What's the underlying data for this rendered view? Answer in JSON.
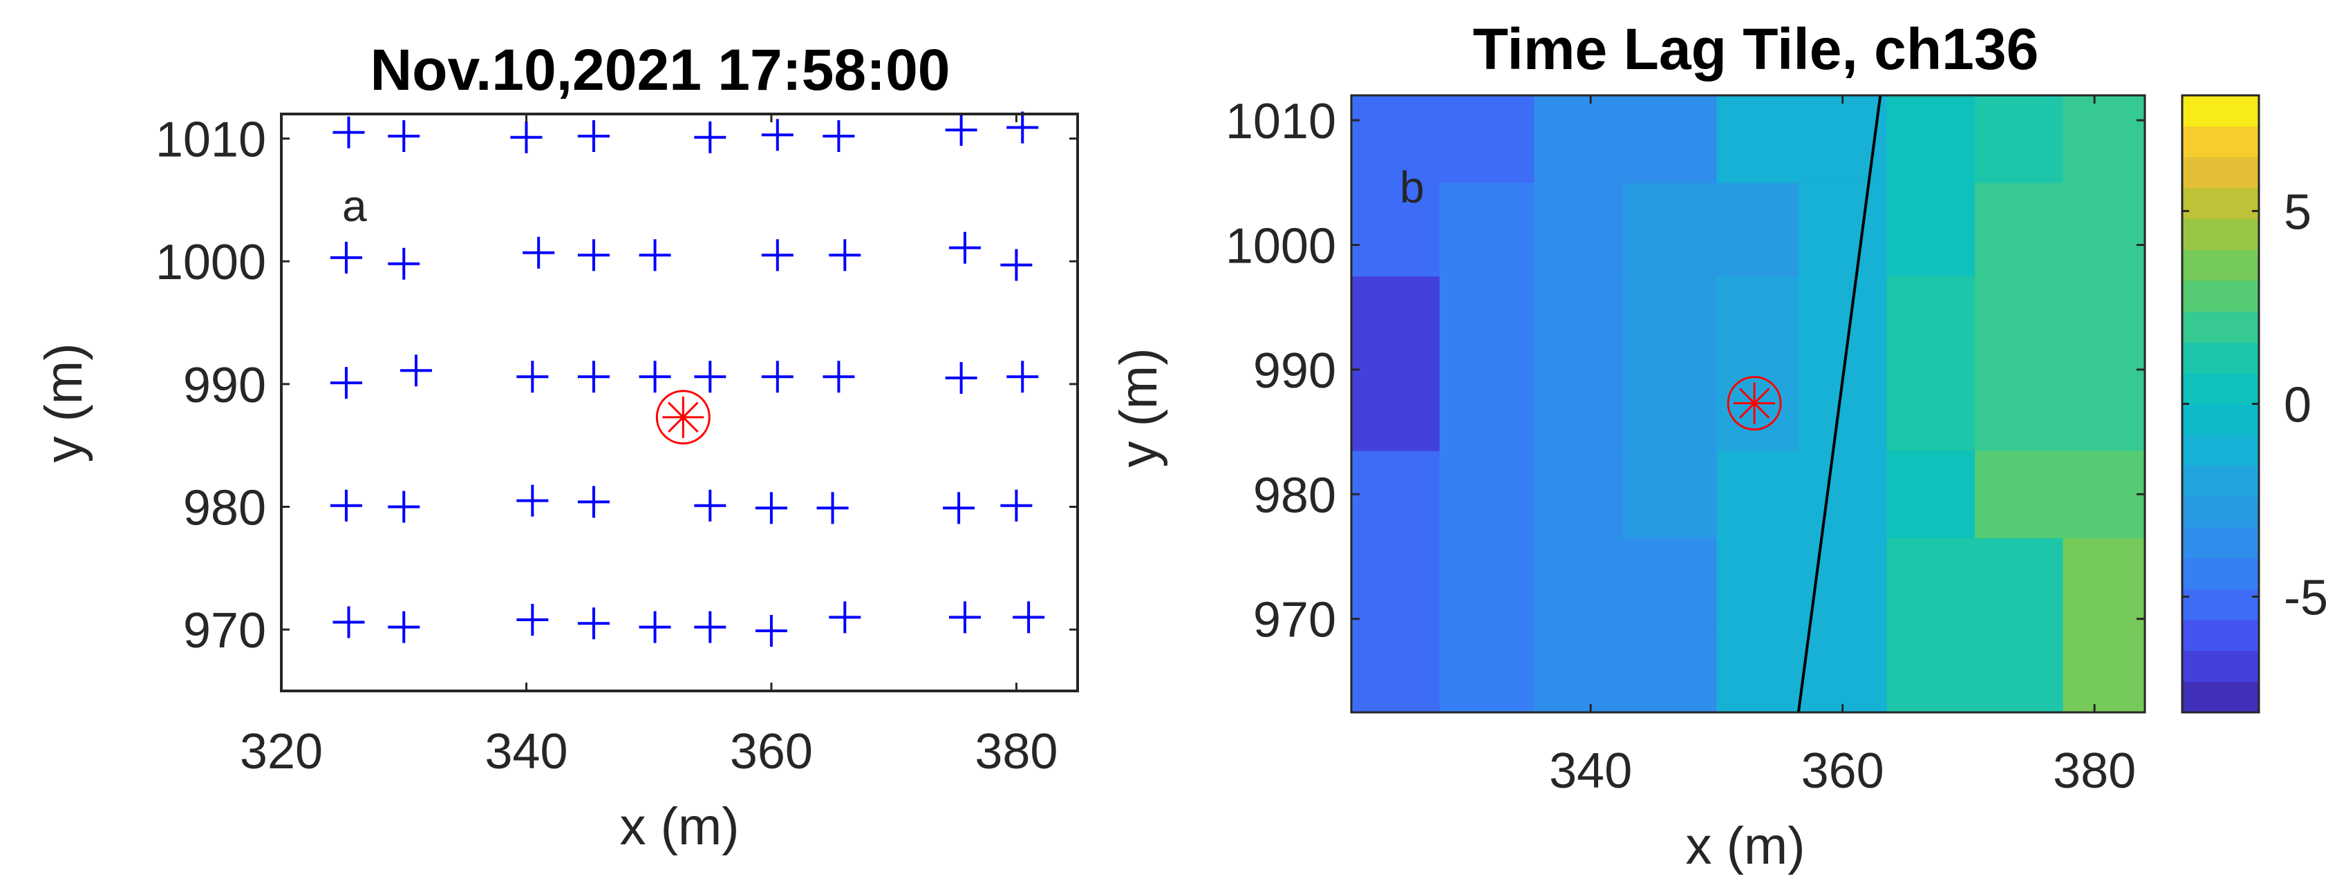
{
  "chart_data": [
    {
      "type": "scatter",
      "title": "Nov.10,2021 17:58:00",
      "xlabel": "x (m)",
      "ylabel": "y (m)",
      "xlim": [
        320,
        385
      ],
      "ylim": [
        965,
        1012
      ],
      "xticks": [
        320,
        340,
        360,
        380
      ],
      "yticks": [
        970,
        980,
        990,
        1000,
        1010
      ],
      "panel_label": "a",
      "grid": false,
      "marker_color": "#0000ff",
      "highlight_color": "#ff0000",
      "series": [
        {
          "marker": "plus",
          "points": [
            [
              325.5,
              1010.5
            ],
            [
              330,
              1010.2
            ],
            [
              340,
              1010.1
            ],
            [
              345.5,
              1010.2
            ],
            [
              355,
              1010.1
            ],
            [
              360.5,
              1010.3
            ],
            [
              365.5,
              1010.2
            ],
            [
              375.5,
              1010.7
            ],
            [
              380.5,
              1010.9
            ],
            [
              325.3,
              1000.3
            ],
            [
              330,
              999.8
            ],
            [
              341,
              1000.7
            ],
            [
              345.5,
              1000.5
            ],
            [
              350.5,
              1000.5
            ],
            [
              360.5,
              1000.5
            ],
            [
              366,
              1000.5
            ],
            [
              375.8,
              1001.1
            ],
            [
              380,
              999.7
            ],
            [
              325.3,
              990.1
            ],
            [
              331,
              991.1
            ],
            [
              340.5,
              990.6
            ],
            [
              345.5,
              990.6
            ],
            [
              350.5,
              990.6
            ],
            [
              355,
              990.6
            ],
            [
              360.5,
              990.6
            ],
            [
              365.5,
              990.6
            ],
            [
              375.5,
              990.5
            ],
            [
              380.5,
              990.6
            ],
            [
              325.3,
              980.1
            ],
            [
              330,
              980
            ],
            [
              340.5,
              980.5
            ],
            [
              345.5,
              980.4
            ],
            [
              355,
              980.1
            ],
            [
              360,
              979.9
            ],
            [
              365,
              979.9
            ],
            [
              375.3,
              979.9
            ],
            [
              380,
              980.1
            ],
            [
              325.5,
              970.6
            ],
            [
              330,
              970.2
            ],
            [
              340.5,
              970.8
            ],
            [
              345.5,
              970.5
            ],
            [
              350.5,
              970.2
            ],
            [
              355,
              970.2
            ],
            [
              360,
              969.9
            ],
            [
              366,
              971
            ],
            [
              375.8,
              971
            ],
            [
              381,
              971
            ]
          ]
        },
        {
          "marker": "circled-asterisk",
          "points": [
            [
              352.8,
              987.3
            ]
          ]
        }
      ]
    },
    {
      "type": "heatmap",
      "title": "Time Lag Tile, ch136",
      "xlabel": "x (m)",
      "ylabel": "y (m)",
      "xlim": [
        321,
        384
      ],
      "ylim": [
        962.5,
        1012
      ],
      "xticks": [
        340,
        360,
        380
      ],
      "yticks": [
        970,
        980,
        990,
        1000,
        1010
      ],
      "panel_label": "b",
      "colorbar": {
        "range": [
          -8,
          8
        ],
        "ticks": [
          -5,
          0,
          5
        ]
      },
      "x_edges": [
        321,
        328,
        335.5,
        342.5,
        350,
        356.5,
        363.5,
        370.5,
        377.5,
        384
      ],
      "y_edges": [
        962.5,
        969.5,
        976.5,
        983.5,
        990.5,
        997.5,
        1005,
        1012
      ],
      "values": [
        [
          -5.6,
          -4.8,
          -4.0,
          -4.0,
          -1.4,
          -1.0,
          1.4,
          1.4,
          3.6
        ],
        [
          -5.6,
          -4.8,
          -4.0,
          -4.0,
          -1.4,
          -1.0,
          1.4,
          1.4,
          3.6
        ],
        [
          -5.6,
          -4.8,
          -4.0,
          -3.2,
          -1.4,
          -1.0,
          0.6,
          2.8,
          2.8
        ],
        [
          -6.4,
          -4.8,
          -4.0,
          -3.2,
          -2.4,
          -1.0,
          1.4,
          2.2,
          2.2
        ],
        [
          -6.4,
          -4.8,
          -4.0,
          -3.2,
          -2.4,
          -1.0,
          1.4,
          2.2,
          2.2
        ],
        [
          -5.6,
          -4.8,
          -4.0,
          -3.2,
          -3.2,
          -1.0,
          0.6,
          2.2,
          2.2
        ],
        [
          -5.6,
          -5.6,
          -4.0,
          -4.0,
          -1.4,
          -1.4,
          0.6,
          1.4,
          2.2
        ]
      ],
      "line": {
        "points": [
          [
            356.5,
            962.5
          ],
          [
            363,
            1012
          ]
        ],
        "color": "#000000"
      },
      "marker": {
        "type": "circled-asterisk",
        "point": [
          353,
          987.3
        ],
        "color": "#ff0000"
      }
    }
  ]
}
